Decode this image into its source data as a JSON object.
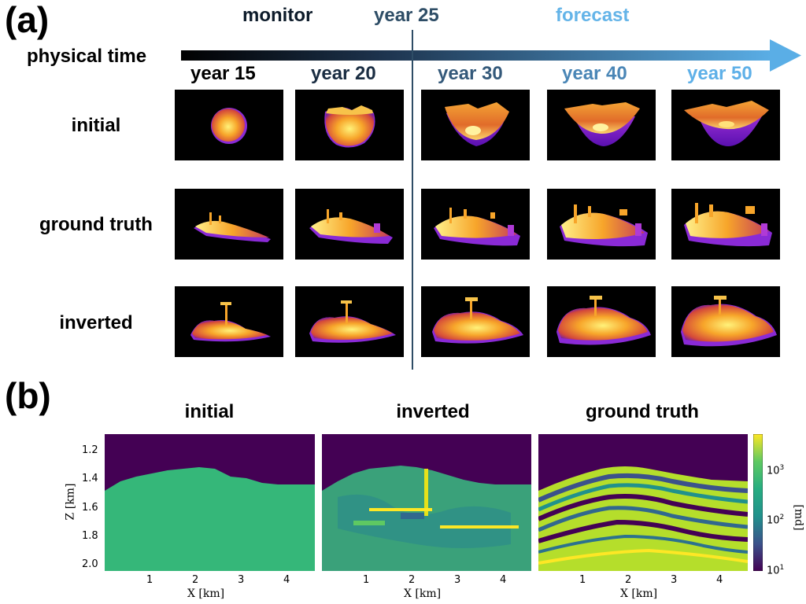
{
  "panel_a": {
    "label": "(a)",
    "phase_monitor": "monitor",
    "phase_divider": "year 25",
    "phase_forecast": "forecast",
    "time_axis_label": "physical time",
    "years": [
      "year 15",
      "year 20",
      "year 30",
      "year 40",
      "year 50"
    ],
    "rows": [
      "initial",
      "ground truth",
      "inverted"
    ],
    "colors": {
      "arrow_start": "#000000",
      "arrow_end": "#5aaee6",
      "divider": "#2e4d66",
      "monitor": "#0d1b2a",
      "year25": "#2e4d66",
      "forecast": "#64b4e8"
    }
  },
  "panel_b": {
    "label": "(b)",
    "titles": [
      "initial",
      "inverted",
      "ground truth"
    ],
    "xlabel": "X [km]",
    "ylabel": "Z [km]",
    "colorbar_label": "[md]",
    "x_ticks": [
      "1",
      "2",
      "3",
      "4"
    ],
    "y_ticks": [
      "1.2",
      "1.4",
      "1.6",
      "1.8",
      "2.0"
    ],
    "colorbar_ticks": [
      {
        "base": "10",
        "exp": "3"
      },
      {
        "base": "10",
        "exp": "2"
      },
      {
        "base": "10",
        "exp": "1"
      }
    ],
    "colormap": "viridis"
  }
}
